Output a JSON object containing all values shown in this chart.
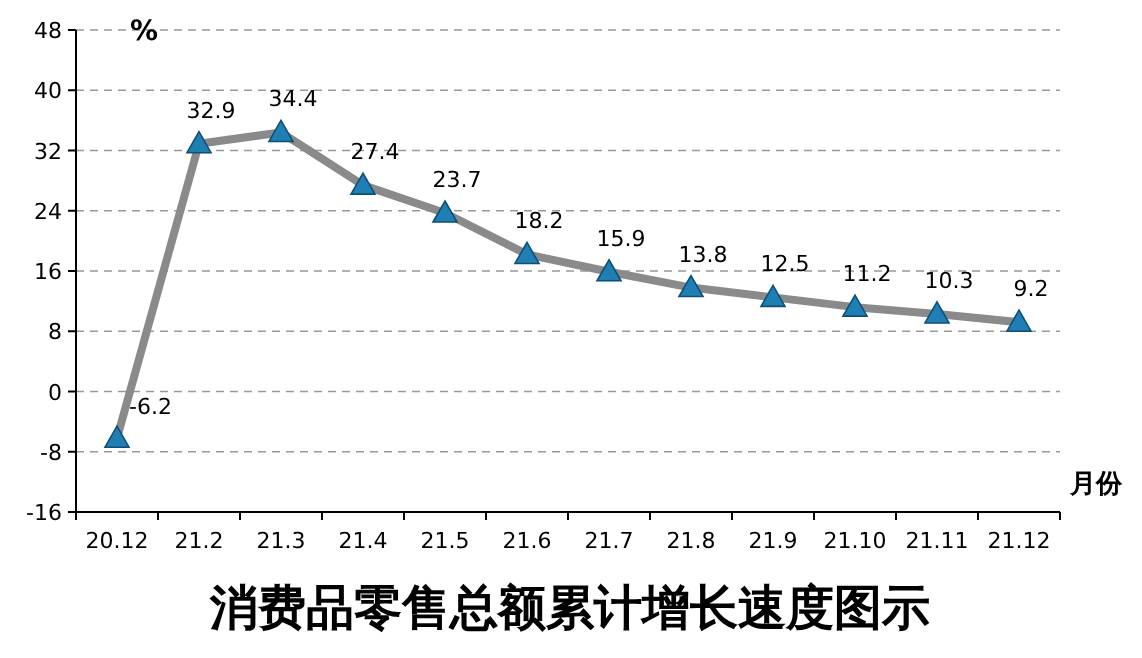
{
  "chart_data": {
    "type": "line",
    "title": "消费品零售总额累计增长速度图示",
    "ylabel": "%",
    "xlabel": "月份",
    "categories": [
      "20.12",
      "21.2",
      "21.3",
      "21.4",
      "21.5",
      "21.6",
      "21.7",
      "21.8",
      "21.9",
      "21.10",
      "21.11",
      "21.12"
    ],
    "series": [
      {
        "color": "#1f7fb5",
        "values": [
          -6.2,
          32.9,
          34.4,
          27.4,
          23.7,
          18.2,
          15.9,
          13.8,
          12.5,
          11.2,
          10.3,
          9.2
        ]
      }
    ],
    "ylim": [
      -16,
      48
    ],
    "yticks": [
      -16,
      -8,
      0,
      8,
      16,
      24,
      32,
      40,
      48
    ],
    "grid": "y",
    "marker": "triangle",
    "data_labels": true
  }
}
